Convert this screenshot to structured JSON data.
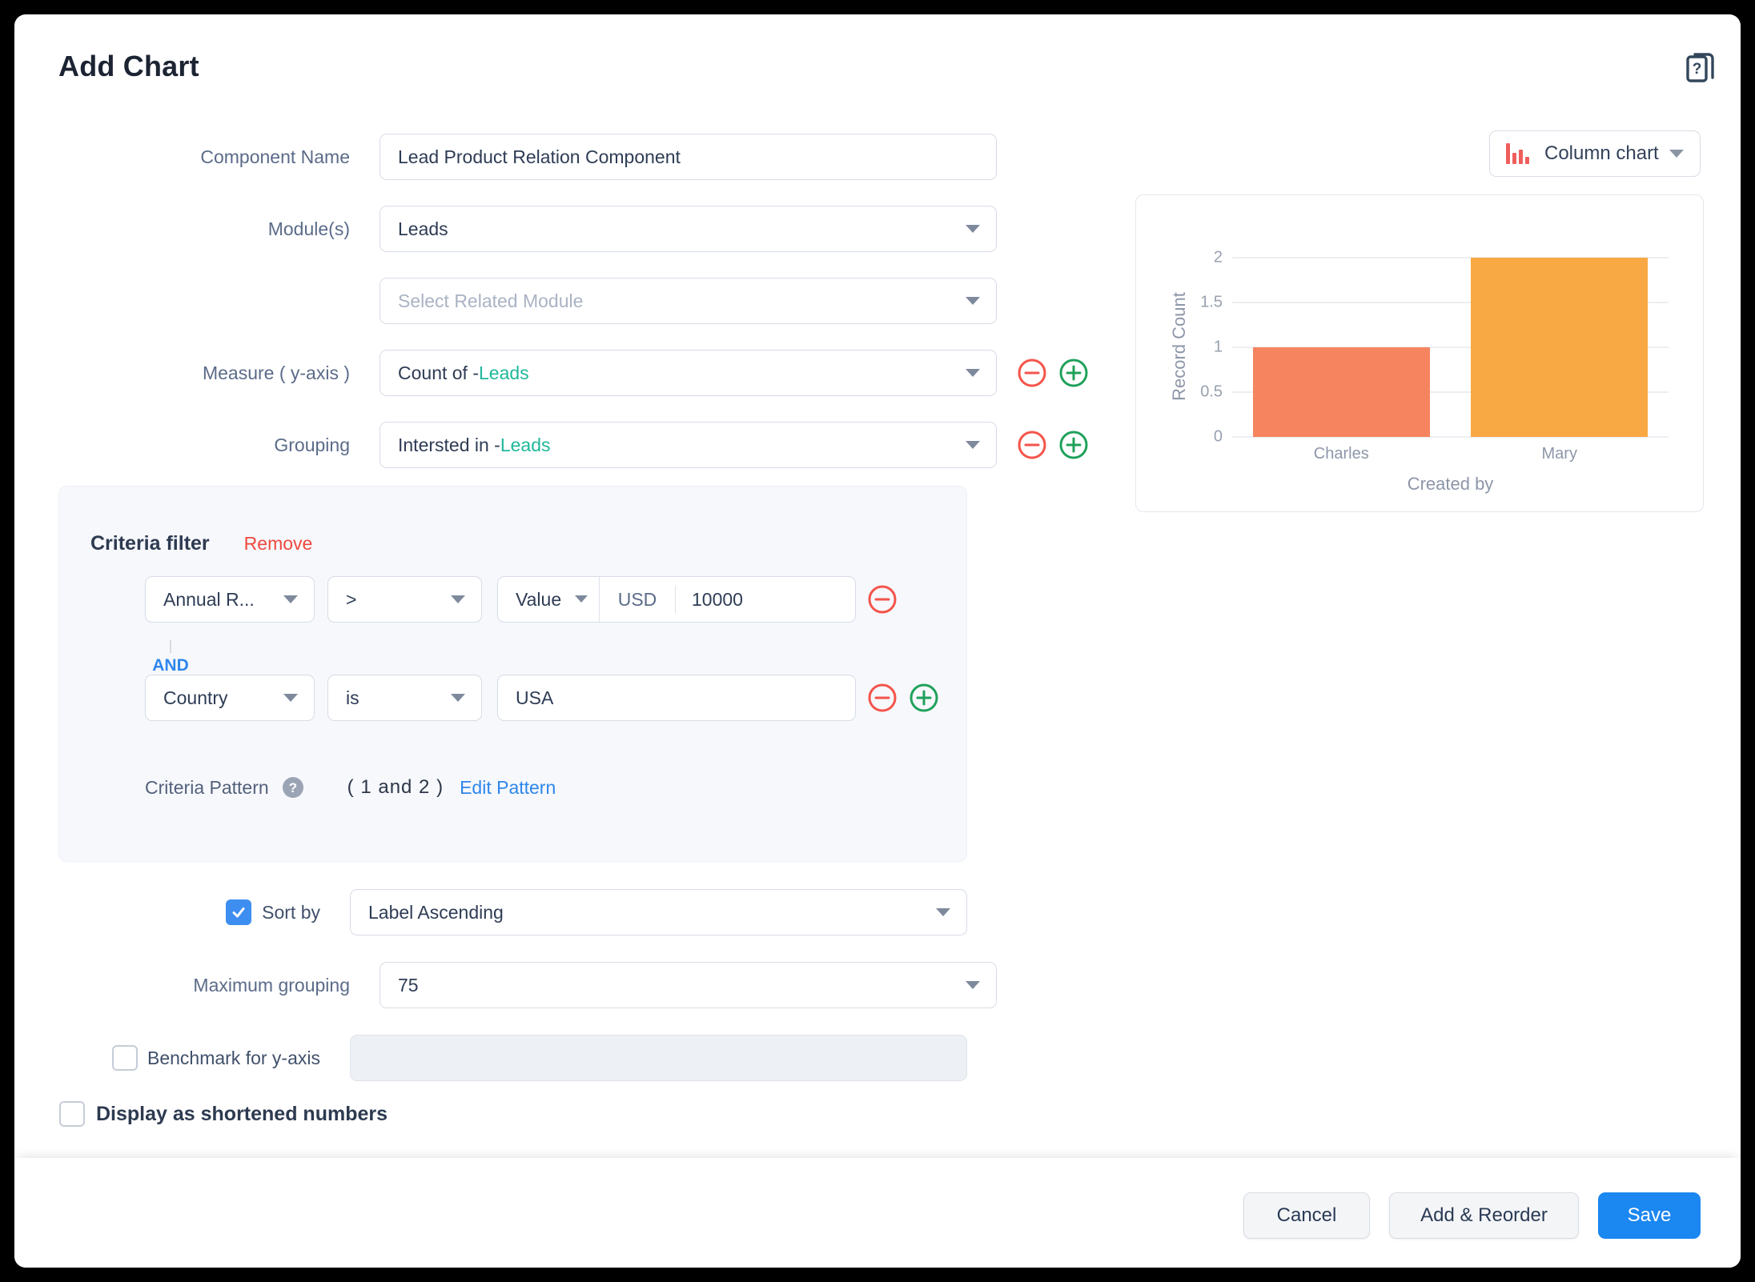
{
  "dialog": {
    "title": "Add Chart"
  },
  "chart_type_selector": {
    "label": "Column chart"
  },
  "form": {
    "component_name": {
      "label": "Component Name",
      "value": "Lead Product Relation Component"
    },
    "modules": {
      "label": "Module(s)",
      "value": "Leads"
    },
    "related_module": {
      "placeholder": "Select Related Module"
    },
    "measure": {
      "label": "Measure ( y-axis )",
      "value_prefix": "Count of - ",
      "value_link": "Leads"
    },
    "grouping": {
      "label": "Grouping",
      "value_prefix": "Intersted in - ",
      "value_link": "Leads"
    },
    "sort_by": {
      "label": "Sort by",
      "value": "Label Ascending",
      "checked": true
    },
    "maximum_grouping": {
      "label": "Maximum grouping",
      "value": "75"
    },
    "benchmark": {
      "label": "Benchmark for y-axis",
      "value": "",
      "checked": false
    },
    "shortened_numbers": {
      "label": "Display as shortened numbers",
      "checked": false
    }
  },
  "criteria": {
    "title": "Criteria filter",
    "remove_label": "Remove",
    "connector": "AND",
    "rows": [
      {
        "index": "1",
        "field": "Annual R...",
        "operator": ">",
        "value_type": "Value",
        "currency": "USD",
        "value": "10000"
      },
      {
        "index": "2",
        "field": "Country",
        "operator": "is",
        "value": "USA"
      }
    ],
    "pattern_label": "Criteria Pattern",
    "pattern": "( 1 and 2 )",
    "edit_pattern_label": "Edit Pattern"
  },
  "footer": {
    "cancel": "Cancel",
    "add_reorder": "Add & Reorder",
    "save": "Save"
  },
  "colors": {
    "save_blue": "#1b87f0",
    "link_blue": "#2f86eb",
    "teal_link": "#1fb89b",
    "remove_red": "#f0483e",
    "add_green": "#1fa15b",
    "bar_charles": "#f5845f",
    "bar_mary": "#f8a943"
  },
  "chart_data": {
    "type": "bar",
    "categories": [
      "Charles",
      "Mary"
    ],
    "values": [
      1,
      2
    ],
    "series_colors": [
      "#f5845f",
      "#f8a943"
    ],
    "title": "",
    "xlabel": "Created by",
    "ylabel": "Record Count",
    "ylim": [
      0,
      2
    ],
    "yticks": [
      0,
      0.5,
      1,
      1.5,
      2
    ],
    "grid": true,
    "legend": false
  }
}
